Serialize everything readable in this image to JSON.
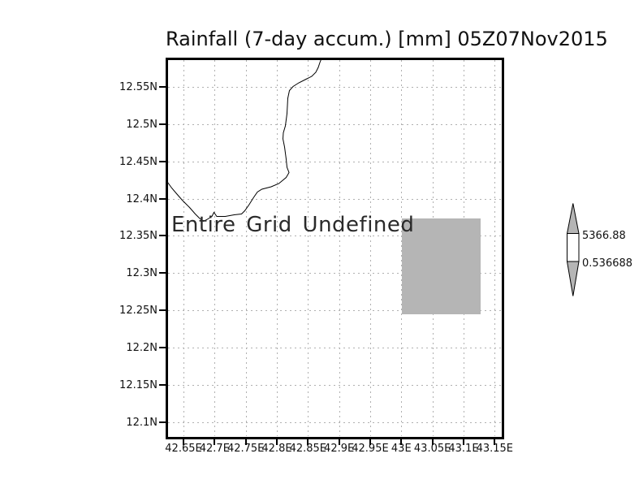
{
  "title": "Rainfall (7-day accum.) [mm] 05Z07Nov2015",
  "plot": {
    "undefined_label": "Entire Grid Undefined"
  },
  "x_axis": {
    "labels": [
      "42.65E",
      "42.7E",
      "42.75E",
      "42.8E",
      "42.85E",
      "42.9E",
      "42.95E",
      "43E",
      "43.05E",
      "43.1E",
      "43.15E"
    ]
  },
  "y_axis": {
    "labels": [
      "12.55N",
      "12.5N",
      "12.45N",
      "12.4N",
      "12.35N",
      "12.3N",
      "12.25N",
      "12.2N",
      "12.15N",
      "12.1N"
    ]
  },
  "colorbar": {
    "max_label": "5366.88",
    "min_label": "0.536688"
  },
  "colors": {
    "axis": "#000000",
    "grid_dots": "#b0b0b0",
    "undefined_fill": "#b5b5b5",
    "colorbar_arrow_fill": "#b5b5b5",
    "colorbar_box_fill": "#ffffff"
  },
  "chart_data": {
    "type": "heatmap",
    "title": "Rainfall (7-day accum.) [mm] 05Z07Nov2015",
    "variable": "Rainfall (7-day accum.)",
    "units": "mm",
    "valid_time": "05Z07Nov2015",
    "x_tick_labels": [
      "42.65E",
      "42.7E",
      "42.75E",
      "42.8E",
      "42.85E",
      "42.9E",
      "42.95E",
      "43E",
      "43.05E",
      "43.1E",
      "43.15E"
    ],
    "y_tick_labels": [
      "12.55N",
      "12.5N",
      "12.45N",
      "12.4N",
      "12.35N",
      "12.3N",
      "12.25N",
      "12.2N",
      "12.15N",
      "12.1N"
    ],
    "xlim": [
      42.62,
      43.17
    ],
    "ylim": [
      12.08,
      12.59
    ],
    "grid": true,
    "values": "undefined",
    "annotation": "Entire Grid Undefined",
    "undefined_shaded_region": {
      "lon_east": [
        43.0,
        43.13
      ],
      "lat_north": [
        12.25,
        12.375
      ]
    },
    "colorbar": {
      "min": 0.536688,
      "max": 5366.88,
      "labels": [
        "5366.88",
        "0.536688"
      ],
      "position": "right"
    }
  }
}
